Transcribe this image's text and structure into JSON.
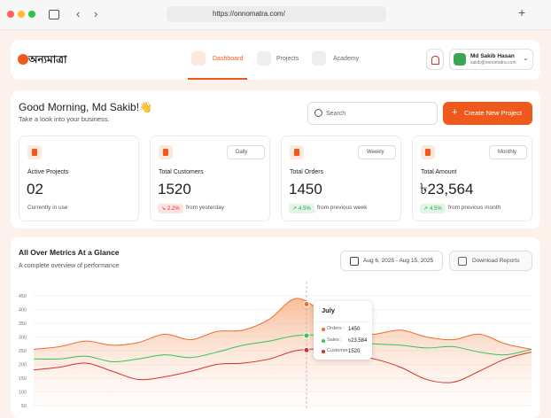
{
  "browser": {
    "url": "https://onnomatra.com/"
  },
  "header": {
    "logo": "অন্যমাত্রা",
    "nav": [
      "Dashboard",
      "Projects",
      "Academy"
    ],
    "user": {
      "name": "Md Sakib Hasan",
      "email": "sakib@onnomatra.com"
    }
  },
  "welcome": {
    "greeting": "Good Morning, Md Sakib!👋",
    "subtitle": "Take a look into your business.",
    "search_placeholder": "Search",
    "button": "Create New Project"
  },
  "cards": [
    {
      "title": "Active Projects",
      "value": "02",
      "note": "Currently in use"
    },
    {
      "title": "Total Customers",
      "filter": "Daily",
      "value": "1520",
      "change": "2.2%",
      "note": "from yesterday"
    },
    {
      "title": "Total Orders",
      "filter": "Weekly",
      "value": "1450",
      "change": "4.5%",
      "note": "from previous week"
    },
    {
      "title": "Total Amount",
      "filter": "Monthly",
      "value": "৳23,564",
      "change": "4.5%",
      "note": "from previous month"
    }
  ],
  "metrics": {
    "title": "All Over Metrics At a Glance",
    "subtitle": "A complete overview of  performance",
    "date_range": "Aug 6, 2025 - Aug 15, 2025",
    "download": "Download Reports",
    "chart": {
      "type": "line",
      "ylim": [
        50,
        450
      ],
      "yticks": [
        50,
        100,
        150,
        200,
        250,
        300,
        350,
        400,
        450
      ],
      "grid": true,
      "series": [
        {
          "name": "Orders",
          "color": "#f26b2b",
          "values": [
            255,
            265,
            285,
            270,
            280,
            310,
            290,
            320,
            325,
            365,
            440,
            390,
            310,
            310,
            325,
            300,
            290,
            310,
            275,
            255
          ]
        },
        {
          "name": "Sales",
          "color": "#2fc65a",
          "values": [
            220,
            220,
            230,
            210,
            220,
            235,
            225,
            245,
            270,
            285,
            305,
            305,
            285,
            275,
            270,
            260,
            265,
            245,
            235,
            255
          ]
        },
        {
          "name": "Customer",
          "color": "#d93025",
          "values": [
            180,
            190,
            205,
            175,
            145,
            155,
            175,
            200,
            205,
            220,
            250,
            255,
            235,
            220,
            190,
            145,
            135,
            175,
            220,
            245
          ]
        }
      ]
    },
    "tooltip": {
      "title": "July",
      "rows": [
        {
          "label": "Orders :",
          "value": "1450"
        },
        {
          "label": "Sales :",
          "value": "৳23,584"
        },
        {
          "label": "Customer :",
          "value": "1520"
        }
      ]
    }
  }
}
